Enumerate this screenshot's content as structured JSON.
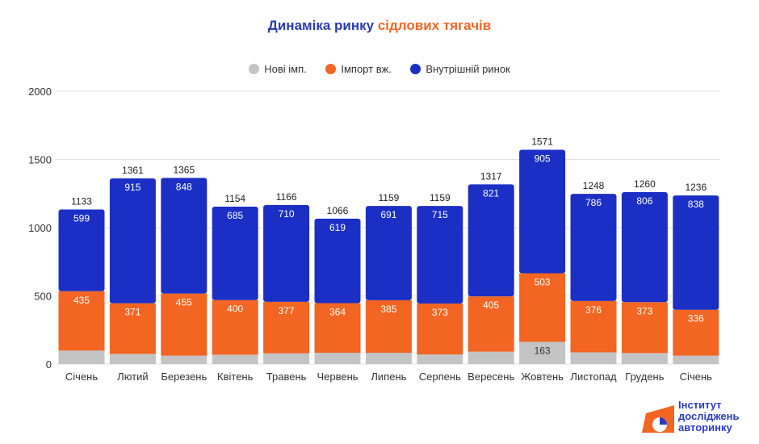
{
  "title": {
    "part1": "Динаміка ринку",
    "part2": "сідлових тягачів"
  },
  "logo": {
    "text": [
      "Інститут",
      "досліджень",
      "авторинку"
    ]
  },
  "chart_data": {
    "type": "stacked-bar",
    "title": "Динаміка ринку сідлових тягачів",
    "categories": [
      "Січень",
      "Лютий",
      "Березень",
      "Квітень",
      "Травень",
      "Червень",
      "Липень",
      "Серпень",
      "Вересень",
      "Жовтень",
      "Листопад",
      "Грудень",
      "Січень"
    ],
    "series": [
      {
        "name": "Нові імп.",
        "color": "#c4c4c4",
        "values": [
          99,
          75,
          62,
          69,
          79,
          83,
          83,
          71,
          91,
          163,
          86,
          81,
          62
        ],
        "labeled": [
          false,
          false,
          false,
          false,
          false,
          false,
          false,
          false,
          false,
          true,
          false,
          false,
          false
        ]
      },
      {
        "name": "Імпорт вж.",
        "color": "#f26522",
        "values": [
          435,
          371,
          455,
          400,
          377,
          364,
          385,
          373,
          405,
          503,
          376,
          373,
          336
        ]
      },
      {
        "name": "Внутрішній ринок",
        "color": "#1c2fc4",
        "values": [
          599,
          915,
          848,
          685,
          710,
          619,
          691,
          715,
          821,
          905,
          786,
          806,
          838
        ]
      }
    ],
    "totals": [
      1133,
      1361,
      1365,
      1154,
      1166,
      1066,
      1159,
      1159,
      1317,
      1571,
      1248,
      1260,
      1236
    ],
    "ylim": [
      0,
      2000
    ],
    "yticks": [
      0,
      500,
      1000,
      1500,
      2000
    ],
    "grid": true,
    "legend": "top-center"
  }
}
